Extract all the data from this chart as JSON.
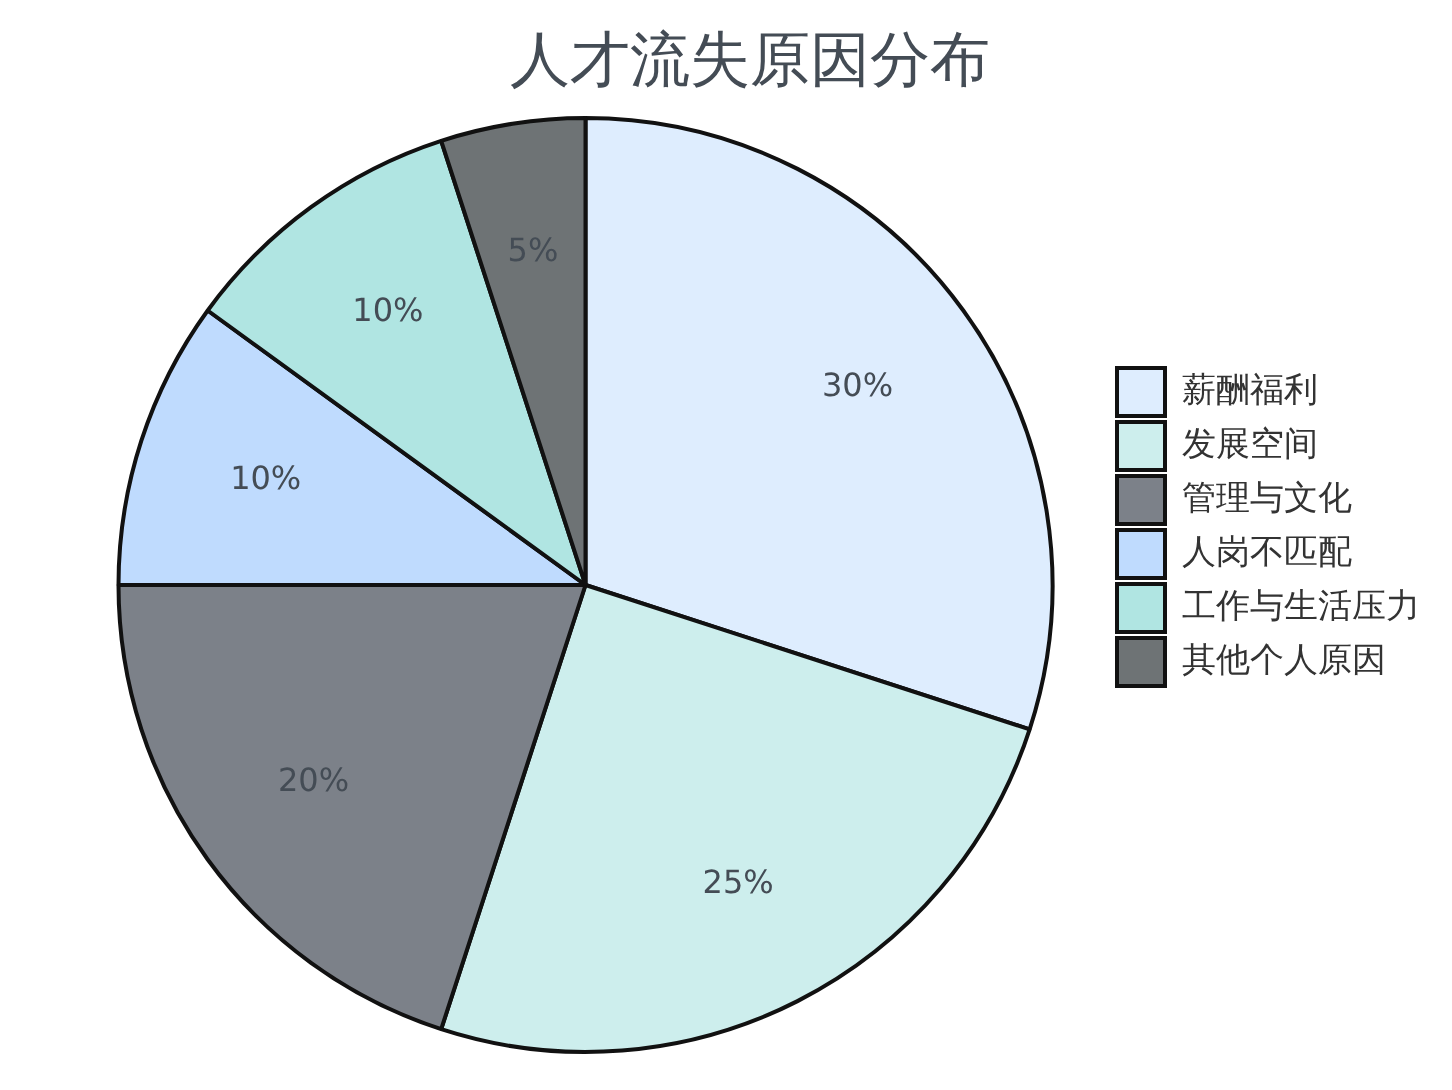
{
  "chart_data": {
    "type": "pie",
    "title": "人才流失原因分布",
    "categories": [
      "薪酬福利",
      "发展空间",
      "管理与文化",
      "人岗不匹配",
      "工作与生活压力",
      "其他个人原因"
    ],
    "values": [
      30,
      25,
      20,
      10,
      10,
      5
    ],
    "value_labels": [
      "30%",
      "25%",
      "20%",
      "10%",
      "10%",
      "5%"
    ],
    "colors": [
      "#deedfe",
      "#cdeeed",
      "#7c8189",
      "#bfdbfe",
      "#b0e5e2",
      "#6e7375"
    ],
    "legend": "right"
  }
}
